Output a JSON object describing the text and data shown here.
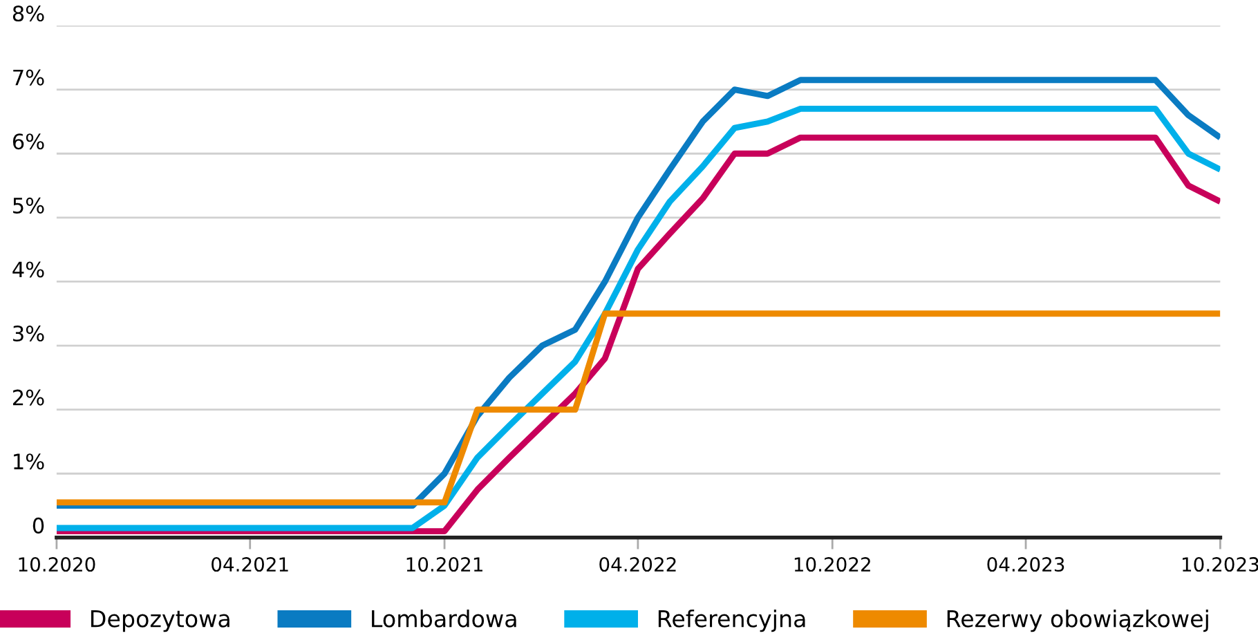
{
  "chart_data": {
    "type": "line",
    "x": [
      "2020-10",
      "2020-11",
      "2020-12",
      "2021-01",
      "2021-02",
      "2021-03",
      "2021-04",
      "2021-05",
      "2021-06",
      "2021-07",
      "2021-08",
      "2021-09",
      "2021-10",
      "2021-11",
      "2021-12",
      "2022-01",
      "2022-02",
      "2022-03",
      "2022-04",
      "2022-05",
      "2022-06",
      "2022-07",
      "2022-08",
      "2022-09",
      "2022-10",
      "2022-11",
      "2022-12",
      "2023-01",
      "2023-02",
      "2023-03",
      "2023-04",
      "2023-05",
      "2023-06",
      "2023-07",
      "2023-08",
      "2023-09",
      "2023-10"
    ],
    "series": [
      {
        "name": "Depozytowa",
        "color": "#c8005a",
        "values": [
          0.1,
          0.1,
          0.1,
          0.1,
          0.1,
          0.1,
          0.1,
          0.1,
          0.1,
          0.1,
          0.1,
          0.1,
          0.1,
          0.75,
          1.25,
          1.75,
          2.25,
          2.8,
          4.2,
          4.75,
          5.3,
          6.0,
          6.0,
          6.25,
          6.25,
          6.25,
          6.25,
          6.25,
          6.25,
          6.25,
          6.25,
          6.25,
          6.25,
          6.25,
          6.25,
          5.5,
          5.25
        ]
      },
      {
        "name": "Lombardowa",
        "color": "#0a7bc2",
        "values": [
          0.5,
          0.5,
          0.5,
          0.5,
          0.5,
          0.5,
          0.5,
          0.5,
          0.5,
          0.5,
          0.5,
          0.5,
          1.0,
          1.9,
          2.5,
          3.0,
          3.25,
          4.0,
          5.0,
          5.75,
          6.5,
          7.0,
          6.9,
          7.15,
          7.15,
          7.15,
          7.15,
          7.15,
          7.15,
          7.15,
          7.15,
          7.15,
          7.15,
          7.15,
          7.15,
          6.6,
          6.25
        ]
      },
      {
        "name": "Referencyjna",
        "color": "#00b0ea",
        "values": [
          0.15,
          0.15,
          0.15,
          0.15,
          0.15,
          0.15,
          0.15,
          0.15,
          0.15,
          0.15,
          0.15,
          0.15,
          0.5,
          1.25,
          1.75,
          2.25,
          2.75,
          3.5,
          4.5,
          5.25,
          5.8,
          6.4,
          6.5,
          6.7,
          6.7,
          6.7,
          6.7,
          6.7,
          6.7,
          6.7,
          6.7,
          6.7,
          6.7,
          6.7,
          6.7,
          6.0,
          5.75
        ]
      },
      {
        "name": "Rezerwy obowiązkowej",
        "color": "#ee8a00",
        "values": [
          0.55,
          0.55,
          0.55,
          0.55,
          0.55,
          0.55,
          0.55,
          0.55,
          0.55,
          0.55,
          0.55,
          0.55,
          0.55,
          2.0,
          2.0,
          2.0,
          2.0,
          3.5,
          3.5,
          3.5,
          3.5,
          3.5,
          3.5,
          3.5,
          3.5,
          3.5,
          3.5,
          3.5,
          3.5,
          3.5,
          3.5,
          3.5,
          3.5,
          3.5,
          3.5,
          3.5,
          3.5
        ]
      }
    ],
    "xlim": [
      "2020-10",
      "2023-10"
    ],
    "xticks": [
      {
        "value": "2020-10",
        "label": "10.2020"
      },
      {
        "value": "2021-04",
        "label": "04.2021"
      },
      {
        "value": "2021-10",
        "label": "10.2021"
      },
      {
        "value": "2022-04",
        "label": "04.2022"
      },
      {
        "value": "2022-10",
        "label": "10.2022"
      },
      {
        "value": "2023-04",
        "label": "04.2023"
      },
      {
        "value": "2023-10",
        "label": "10.2023"
      }
    ],
    "ylim": [
      0,
      8
    ],
    "yticks": [
      0,
      {
        "value": 1,
        "label": "1%"
      },
      {
        "value": 2,
        "label": "2%"
      },
      {
        "value": 3,
        "label": "3%"
      },
      {
        "value": 4,
        "label": "4%"
      },
      {
        "value": 5,
        "label": "5%"
      },
      {
        "value": 6,
        "label": "6%"
      },
      {
        "value": 7,
        "label": "7%"
      },
      {
        "value": 8,
        "label": "8%"
      }
    ],
    "grid": "y",
    "legend": "bottom",
    "marker": "none",
    "line_style": "solid"
  }
}
